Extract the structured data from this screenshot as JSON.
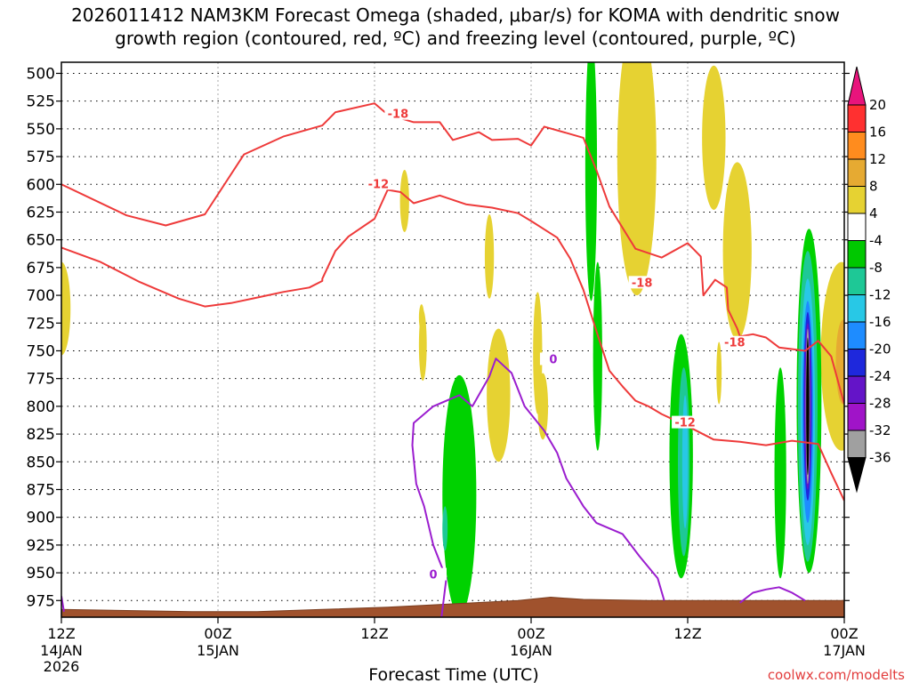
{
  "chart_data": {
    "type": "area",
    "title": {
      "line1": "2026011412 NAM3KM Forecast Omega (shaded, μbar/s) for KOMA with dendritic snow",
      "line2": "growth region (contoured, red, ºC) and freezing level (contoured, purple, ºC)"
    },
    "xlabel": "Forecast Time (UTC)",
    "ylabel": "",
    "credit": "coolwx.com/modelts",
    "x_range_hours": [
      0,
      60
    ],
    "y_range_hpa": [
      490,
      990
    ],
    "y_ticks": [
      "500",
      "525",
      "550",
      "575",
      "600",
      "625",
      "650",
      "675",
      "700",
      "725",
      "750",
      "775",
      "800",
      "825",
      "850",
      "875",
      "900",
      "925",
      "950",
      "975"
    ],
    "x_ticks": [
      {
        "hour": 0,
        "time": "12Z",
        "date": "14JAN",
        "year": "2026"
      },
      {
        "hour": 12,
        "time": "00Z",
        "date": "15JAN",
        "year": ""
      },
      {
        "hour": 24,
        "time": "12Z",
        "date": "",
        "year": ""
      },
      {
        "hour": 36,
        "time": "00Z",
        "date": "16JAN",
        "year": ""
      },
      {
        "hour": 48,
        "time": "12Z",
        "date": "",
        "year": ""
      },
      {
        "hour": 60,
        "time": "00Z",
        "date": "17JAN",
        "year": ""
      }
    ],
    "colorbar": {
      "labels": [
        "20",
        "16",
        "12",
        "8",
        "4",
        "-4",
        "-8",
        "-12",
        "-16",
        "-20",
        "-24",
        "-28",
        "-32",
        "-36"
      ],
      "colors": [
        "#e8147c",
        "#ff3030",
        "#ff8c1e",
        "#e6aa32",
        "#e6d232",
        "#ffffff",
        "#00c800",
        "#1ec896",
        "#28c8e6",
        "#1e8cff",
        "#1e28dc",
        "#6414c8",
        "#a014c8",
        "#a0a0a0",
        "#000000"
      ]
    },
    "omega_regions": [
      {
        "value": 4,
        "t": 0.0,
        "p": 712,
        "dt": 0.7,
        "dp": 42
      },
      {
        "value": 4,
        "t": 26.3,
        "p": 615,
        "dt": 0.35,
        "dp": 28
      },
      {
        "value": 4,
        "t": 32.8,
        "p": 665,
        "dt": 0.35,
        "dp": 38
      },
      {
        "value": 4,
        "t": 27.7,
        "p": 745,
        "dt": 0.3,
        "dp": 32
      },
      {
        "value": 4,
        "t": 27.6,
        "p": 720,
        "dt": 0.2,
        "dp": 12
      },
      {
        "value": 4,
        "t": 33.5,
        "p": 790,
        "dt": 0.9,
        "dp": 60
      },
      {
        "value": 4,
        "t": 36.5,
        "p": 752,
        "dt": 0.35,
        "dp": 55
      },
      {
        "value": 4,
        "t": 36.9,
        "p": 800,
        "dt": 0.4,
        "dp": 30
      },
      {
        "value": 4,
        "t": 44.1,
        "p": 575,
        "dt": 1.5,
        "dp": 125
      },
      {
        "value": 4,
        "t": 50.0,
        "p": 558,
        "dt": 0.9,
        "dp": 65
      },
      {
        "value": 4,
        "t": 51.8,
        "p": 660,
        "dt": 1.1,
        "dp": 80
      },
      {
        "value": 4,
        "t": 50.4,
        "p": 770,
        "dt": 0.2,
        "dp": 28
      },
      {
        "value": 4,
        "t": 59.8,
        "p": 755,
        "dt": 1.6,
        "dp": 85
      },
      {
        "value": 8,
        "t": 59.9,
        "p": 760,
        "dt": 0.55,
        "dp": 38
      },
      {
        "value": -4,
        "t": 30.5,
        "p": 880,
        "dt": 1.3,
        "dp": 108
      },
      {
        "value": -4,
        "t": 40.6,
        "p": 585,
        "dt": 0.45,
        "dp": 120
      },
      {
        "value": -4,
        "t": 41.1,
        "p": 755,
        "dt": 0.35,
        "dp": 85
      },
      {
        "value": -4,
        "t": 47.5,
        "p": 845,
        "dt": 0.9,
        "dp": 110
      },
      {
        "value": -4,
        "t": 57.3,
        "p": 795,
        "dt": 0.95,
        "dp": 155
      },
      {
        "value": -4,
        "t": 55.1,
        "p": 860,
        "dt": 0.45,
        "dp": 95
      },
      {
        "value": -8,
        "t": 29.4,
        "p": 910,
        "dt": 0.2,
        "dp": 20
      },
      {
        "value": -8,
        "t": 47.7,
        "p": 850,
        "dt": 0.45,
        "dp": 85
      },
      {
        "value": -8,
        "t": 57.2,
        "p": 800,
        "dt": 0.75,
        "dp": 140
      },
      {
        "value": -12,
        "t": 47.8,
        "p": 850,
        "dt": 0.22,
        "dp": 60
      },
      {
        "value": -12,
        "t": 57.2,
        "p": 805,
        "dt": 0.55,
        "dp": 120
      },
      {
        "value": -16,
        "t": 57.2,
        "p": 805,
        "dt": 0.42,
        "dp": 100
      },
      {
        "value": -20,
        "t": 57.2,
        "p": 800,
        "dt": 0.32,
        "dp": 85
      },
      {
        "value": -24,
        "t": 57.2,
        "p": 800,
        "dt": 0.26,
        "dp": 75
      },
      {
        "value": -32,
        "t": 57.2,
        "p": 800,
        "dt": 0.16,
        "dp": 70
      },
      {
        "value": -36,
        "t": 57.2,
        "p": 800,
        "dt": 0.12,
        "dp": 62
      }
    ],
    "contours": [
      {
        "name": "dgz-minus18",
        "color": "#ee3a3a",
        "label": "-18",
        "points": [
          [
            0,
            600
          ],
          [
            5,
            628
          ],
          [
            8,
            637
          ],
          [
            11,
            627
          ],
          [
            14,
            573
          ],
          [
            17,
            557
          ],
          [
            20,
            547
          ],
          [
            21,
            535
          ],
          [
            24,
            527
          ],
          [
            25,
            537
          ],
          [
            27,
            544
          ],
          [
            29,
            544
          ],
          [
            30,
            560
          ],
          [
            32,
            553
          ],
          [
            33,
            560
          ],
          [
            35,
            559
          ],
          [
            36,
            565
          ],
          [
            37,
            548
          ],
          [
            40,
            558
          ],
          [
            41,
            587
          ],
          [
            42,
            620
          ],
          [
            44,
            658
          ],
          [
            46,
            666
          ],
          [
            48,
            653
          ],
          [
            49,
            665
          ],
          [
            49.2,
            700
          ],
          [
            50.1,
            686
          ],
          [
            51,
            693
          ],
          [
            51.1,
            713
          ],
          [
            51.8,
            730
          ],
          [
            52,
            737
          ],
          [
            53,
            735
          ],
          [
            54,
            738
          ],
          [
            55,
            747
          ],
          [
            57,
            750
          ],
          [
            58,
            741
          ],
          [
            59,
            755
          ],
          [
            60,
            798
          ]
        ],
        "labels": [
          {
            "t": 25.8,
            "p": 537,
            "text": "-18"
          },
          {
            "t": 44.5,
            "p": 689,
            "text": "-18"
          },
          {
            "t": 51.6,
            "p": 743,
            "text": "-18"
          }
        ]
      },
      {
        "name": "dgz-minus12",
        "color": "#ee3a3a",
        "label": "-12",
        "points": [
          [
            0,
            657
          ],
          [
            3,
            670
          ],
          [
            6,
            688
          ],
          [
            9,
            703
          ],
          [
            11,
            710
          ],
          [
            13,
            707
          ],
          [
            15,
            702
          ],
          [
            17,
            697
          ],
          [
            19,
            693
          ],
          [
            20,
            687
          ],
          [
            20,
            685
          ],
          [
            21,
            660
          ],
          [
            22,
            647
          ],
          [
            24,
            631
          ],
          [
            25,
            605
          ],
          [
            26,
            607
          ],
          [
            27,
            617
          ],
          [
            29,
            610
          ],
          [
            31,
            618
          ],
          [
            33,
            621
          ],
          [
            35,
            626
          ],
          [
            36,
            633
          ],
          [
            38,
            648
          ],
          [
            39,
            667
          ],
          [
            40,
            695
          ],
          [
            41,
            732
          ],
          [
            42,
            768
          ],
          [
            43,
            782
          ],
          [
            44,
            795
          ],
          [
            45,
            800
          ],
          [
            46,
            807
          ],
          [
            48,
            818
          ],
          [
            50,
            830
          ],
          [
            52,
            832
          ],
          [
            54,
            835
          ],
          [
            56,
            831
          ],
          [
            58,
            834
          ],
          [
            59,
            860
          ],
          [
            60,
            885
          ]
        ],
        "labels": [
          {
            "t": 24.3,
            "p": 600,
            "text": "-12"
          },
          {
            "t": 47.8,
            "p": 815,
            "text": "-12"
          }
        ]
      },
      {
        "name": "freezing-level",
        "color": "#9b1ecf",
        "label": "0",
        "points": [
          [
            0,
            971
          ],
          [
            0.2,
            985
          ]
        ],
        "labels": []
      },
      {
        "name": "freezing-level-main",
        "color": "#9b1ecf",
        "label": "0",
        "points": [
          [
            29.1,
            993
          ],
          [
            29.5,
            955
          ],
          [
            29.0,
            940
          ],
          [
            28.5,
            925
          ],
          [
            27.8,
            890
          ],
          [
            27.2,
            870
          ],
          [
            26.9,
            835
          ],
          [
            27.0,
            815
          ],
          [
            28.5,
            800
          ],
          [
            30.5,
            790
          ],
          [
            31.5,
            800
          ],
          [
            32.8,
            773
          ],
          [
            33.3,
            757
          ],
          [
            34.5,
            770
          ],
          [
            35.5,
            800
          ],
          [
            37.0,
            822
          ],
          [
            38.0,
            842
          ],
          [
            38.7,
            865
          ],
          [
            40.0,
            890
          ],
          [
            41.0,
            905
          ],
          [
            43.0,
            915
          ],
          [
            44.3,
            935
          ],
          [
            45.7,
            955
          ],
          [
            46.2,
            975
          ]
        ],
        "labels": [
          {
            "t": 37.7,
            "p": 758,
            "text": "0"
          },
          {
            "t": 28.5,
            "p": 952,
            "text": "0"
          }
        ]
      },
      {
        "name": "freezing-level-right",
        "color": "#9b1ecf",
        "label": "0",
        "points": [
          [
            52,
            977
          ],
          [
            53,
            968
          ],
          [
            54,
            965
          ],
          [
            55,
            963
          ],
          [
            56,
            968
          ],
          [
            57,
            975
          ]
        ],
        "labels": []
      }
    ],
    "terrain_hpa": [
      [
        0,
        983
      ],
      [
        5,
        984
      ],
      [
        10,
        985
      ],
      [
        15,
        985
      ],
      [
        20,
        983
      ],
      [
        25,
        981
      ],
      [
        30,
        978
      ],
      [
        35,
        975
      ],
      [
        37.5,
        972
      ],
      [
        40,
        974
      ],
      [
        45,
        975
      ],
      [
        50,
        975
      ],
      [
        55,
        975
      ],
      [
        60,
        975
      ]
    ]
  }
}
